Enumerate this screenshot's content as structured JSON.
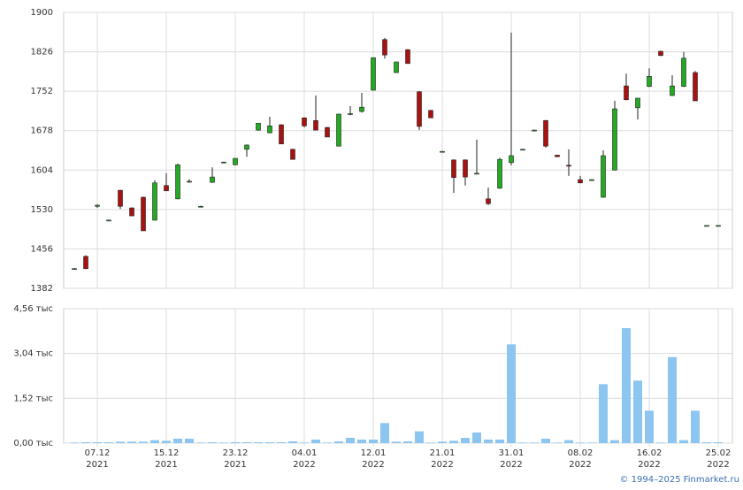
{
  "chart_data": {
    "type": "candlestick",
    "categories": [
      null,
      null,
      "07.12",
      null,
      null,
      null,
      null,
      null,
      "15.12",
      null,
      null,
      null,
      null,
      null,
      "23.12",
      null,
      null,
      null,
      null,
      null,
      "04.01",
      null,
      null,
      null,
      null,
      null,
      "12.01",
      null,
      null,
      null,
      null,
      null,
      "21.01",
      null,
      null,
      null,
      null,
      null,
      "31.01",
      null,
      null,
      null,
      null,
      null,
      "08.02",
      null,
      null,
      null,
      null,
      null,
      "16.02",
      null,
      null,
      null,
      null,
      null,
      "25.02"
    ],
    "category_years": [
      null,
      null,
      "2021",
      null,
      null,
      null,
      null,
      null,
      "2021",
      null,
      null,
      null,
      null,
      null,
      "2021",
      null,
      null,
      null,
      null,
      null,
      "2022",
      null,
      null,
      null,
      null,
      null,
      "2022",
      null,
      null,
      null,
      null,
      null,
      "2022",
      null,
      null,
      null,
      null,
      null,
      "2022",
      null,
      null,
      null,
      null,
      null,
      "2022",
      null,
      null,
      null,
      null,
      null,
      "2022",
      null,
      null,
      null,
      null,
      null,
      "2022"
    ],
    "open": [
      1419,
      1442,
      1536,
      1510,
      1566,
      1533,
      1553,
      1510,
      1575,
      1550,
      1583,
      1536,
      1581,
      1619,
      1614,
      1643,
      1679,
      1674,
      1689,
      1643,
      1702,
      1697,
      1684,
      1649,
      1709,
      1714,
      1754,
      1849,
      1787,
      1830,
      1751,
      1716,
      1639,
      1623,
      1623,
      1598,
      1550,
      1570,
      1618,
      1643,
      1679,
      1697,
      1632,
      1613,
      1586,
      1586,
      1553,
      1604,
      1762,
      1721,
      1761,
      1827,
      1744,
      1761,
      1787,
      1500,
      1500
    ],
    "high": [
      1420,
      1444,
      1540,
      1511,
      1567,
      1534,
      1554,
      1585,
      1598,
      1616,
      1587,
      1537,
      1609,
      1620,
      1626,
      1652,
      1692,
      1704,
      1690,
      1644,
      1703,
      1744,
      1685,
      1710,
      1724,
      1749,
      1815,
      1852,
      1807,
      1831,
      1752,
      1717,
      1640,
      1624,
      1624,
      1661,
      1571,
      1627,
      1862,
      1644,
      1680,
      1698,
      1633,
      1643,
      1593,
      1587,
      1641,
      1734,
      1785,
      1739,
      1795,
      1828,
      1782,
      1826,
      1790,
      1500,
      1500
    ],
    "low": [
      1418,
      1418,
      1533,
      1509,
      1531,
      1518,
      1490,
      1509,
      1565,
      1549,
      1580,
      1535,
      1580,
      1618,
      1613,
      1629,
      1678,
      1673,
      1653,
      1624,
      1684,
      1679,
      1666,
      1648,
      1707,
      1712,
      1753,
      1813,
      1786,
      1804,
      1679,
      1702,
      1638,
      1561,
      1575,
      1597,
      1538,
      1569,
      1613,
      1642,
      1678,
      1646,
      1629,
      1593,
      1579,
      1585,
      1552,
      1603,
      1735,
      1699,
      1760,
      1818,
      1743,
      1760,
      1734,
      1500,
      1500
    ],
    "close": [
      1419,
      1419,
      1538,
      1510,
      1536,
      1518,
      1490,
      1580,
      1565,
      1614,
      1583,
      1536,
      1591,
      1619,
      1626,
      1651,
      1692,
      1687,
      1653,
      1624,
      1687,
      1679,
      1666,
      1709,
      1710,
      1722,
      1815,
      1820,
      1807,
      1804,
      1686,
      1702,
      1639,
      1590,
      1591,
      1598,
      1541,
      1624,
      1631,
      1643,
      1679,
      1649,
      1629,
      1612,
      1580,
      1586,
      1631,
      1719,
      1736,
      1739,
      1780,
      1819,
      1762,
      1814,
      1734,
      1500,
      1500
    ],
    "volume": [
      0.02,
      0.03,
      0.03,
      0.03,
      0.05,
      0.05,
      0.05,
      0.1,
      0.08,
      0.15,
      0.15,
      0.02,
      0.03,
      0.02,
      0.03,
      0.03,
      0.03,
      0.03,
      0.03,
      0.06,
      0.02,
      0.12,
      0.02,
      0.06,
      0.18,
      0.12,
      0.12,
      0.68,
      0.05,
      0.06,
      0.4,
      0.02,
      0.05,
      0.08,
      0.18,
      0.36,
      0.12,
      0.12,
      3.35,
      0.02,
      0.02,
      0.15,
      0.02,
      0.1,
      0.02,
      0.02,
      2.0,
      0.1,
      3.9,
      2.12,
      1.1,
      0.02,
      2.92,
      0.1,
      1.1,
      0.03,
      0.03
    ],
    "up_color": "#22aa22",
    "down_color": "#aa1111",
    "volume_color": "#8cc6f0",
    "ylim": [
      1382,
      1900
    ],
    "yticks": [
      1382,
      1456,
      1530,
      1604,
      1678,
      1752,
      1826,
      1900
    ],
    "y2lim": [
      0,
      4.56
    ],
    "y2ticks": [
      {
        "value": 0,
        "label": "0,00 тыс"
      },
      {
        "value": 1.52,
        "label": "1,52 тыс"
      },
      {
        "value": 3.04,
        "label": "3,04 тыс"
      },
      {
        "value": 4.56,
        "label": "4,56 тыс"
      }
    ],
    "grid": true,
    "credit": "© 1994–2025 Finmarket.ru"
  }
}
